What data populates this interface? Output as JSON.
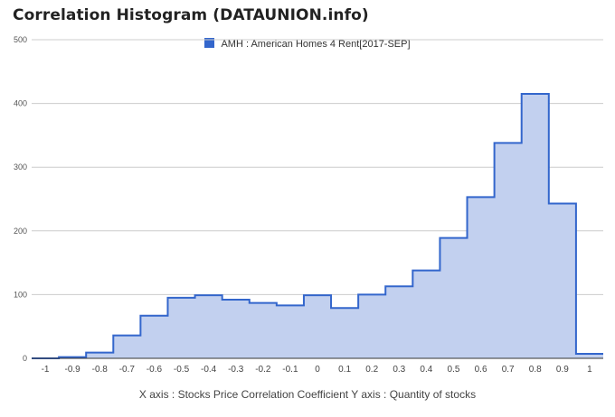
{
  "title": "Correlation Histogram (DATAUNION.info)",
  "footer": "X axis : Stocks Price Correlation Coefficient  Y axis : Quantity of stocks",
  "colors": {
    "series_line": "#3366cc",
    "series_fill": "#c2d0ef",
    "grid": "#cccccc",
    "axis": "#333333"
  },
  "chart_data": {
    "type": "area",
    "title": "Correlation Histogram (DATAUNION.info)",
    "xlabel": "X axis : Stocks Price Correlation Coefficient",
    "ylabel": "Y axis : Quantity of stocks",
    "xlim": [
      -1.05,
      1.05
    ],
    "ylim": [
      0,
      500
    ],
    "grid": true,
    "legend": "top-center",
    "x_ticks": [
      "-1",
      "-0.9",
      "-0.8",
      "-0.7",
      "-0.6",
      "-0.5",
      "-0.4",
      "-0.3",
      "-0.2",
      "-0.1",
      "0",
      "0.1",
      "0.2",
      "0.3",
      "0.4",
      "0.5",
      "0.6",
      "0.7",
      "0.8",
      "0.9",
      "1"
    ],
    "y_ticks": [
      "0",
      "100",
      "200",
      "300",
      "400",
      "500"
    ],
    "series": [
      {
        "name": "AMH : American Homes 4 Rent[2017-SEP]",
        "x": [
          -1,
          -0.9,
          -0.8,
          -0.7,
          -0.6,
          -0.5,
          -0.4,
          -0.3,
          -0.2,
          -0.1,
          0,
          0.1,
          0.2,
          0.3,
          0.4,
          0.5,
          0.6,
          0.7,
          0.8,
          0.9,
          1
        ],
        "values": [
          0,
          2,
          9,
          36,
          67,
          95,
          99,
          92,
          87,
          83,
          99,
          79,
          100,
          113,
          138,
          189,
          253,
          338,
          415,
          243,
          7
        ]
      }
    ]
  }
}
